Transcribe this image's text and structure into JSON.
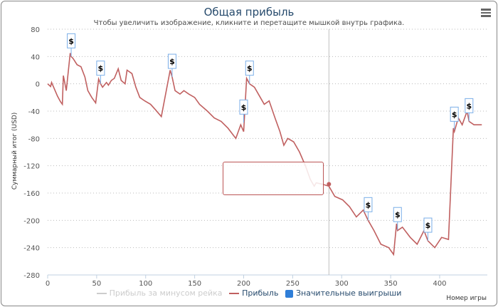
{
  "header": {
    "title": "Общая прибыль",
    "subtitle": "Чтобы увеличить изображение, кликните и перетащите мышкой внутрь графика.",
    "menu_icon": "hamburger-icon"
  },
  "chart_data": {
    "type": "line",
    "title": "Общая прибыль",
    "xlabel": "Номер игры",
    "ylabel": "Суммарный итог (USD)",
    "xlim": [
      0,
      445
    ],
    "ylim": [
      -280,
      80
    ],
    "xticks": [
      0,
      50,
      100,
      150,
      200,
      250,
      300,
      350,
      400
    ],
    "yticks": [
      80,
      40,
      0,
      -40,
      -80,
      -120,
      -160,
      -200,
      -240,
      -280
    ],
    "grid": "horizontal-dotted",
    "legend_placement": "bottom",
    "legend": [
      {
        "name": "Прибыль за минусом рейка",
        "color": "#cccccc",
        "hidden": true
      },
      {
        "name": "Прибыль",
        "color": "#c06060"
      },
      {
        "name": "Значительные выигрыши",
        "color": "#2f7ed8"
      }
    ],
    "series": [
      {
        "name": "Прибыль",
        "color": "#c06060",
        "x": [
          0,
          3,
          4,
          7,
          10,
          13,
          15,
          16,
          17,
          19,
          23,
          24,
          26,
          30,
          34,
          38,
          41,
          45,
          49,
          52,
          54,
          56,
          60,
          62,
          65,
          68,
          72,
          75,
          79,
          81,
          86,
          90,
          94,
          99,
          105,
          110,
          116,
          125,
          127,
          130,
          135,
          139,
          144,
          150,
          155,
          163,
          170,
          177,
          184,
          192,
          197,
          200,
          203,
          206,
          211,
          215,
          221,
          226,
          232,
          237,
          241,
          245,
          251,
          257,
          263,
          268,
          272,
          274,
          280,
          287,
          293,
          301,
          308,
          315,
          322,
          327,
          333,
          340,
          348,
          353,
          356,
          357,
          362,
          370,
          377,
          384,
          388,
          395,
          402,
          409,
          414,
          415,
          419,
          423,
          428,
          430,
          435,
          440,
          443
        ],
        "y": [
          0,
          -4,
          2,
          -8,
          -18,
          -26,
          -30,
          12,
          5,
          -10,
          45,
          40,
          37,
          28,
          25,
          10,
          -10,
          -20,
          -28,
          7,
          0,
          -5,
          2,
          -2,
          5,
          8,
          22,
          5,
          0,
          20,
          15,
          -5,
          -20,
          -25,
          -30,
          -38,
          -48,
          20,
          10,
          -10,
          -15,
          -10,
          -15,
          -20,
          -30,
          -40,
          -50,
          -55,
          -65,
          -80,
          -60,
          -70,
          8,
          0,
          -5,
          -15,
          -30,
          -25,
          -50,
          -70,
          -90,
          -80,
          -85,
          -100,
          -120,
          -140,
          -150,
          -145,
          -147,
          -150,
          -165,
          -170,
          -180,
          -195,
          -185,
          -200,
          -215,
          -235,
          -240,
          -250,
          -205,
          -215,
          -210,
          -225,
          -235,
          -215,
          -230,
          -240,
          -225,
          -228,
          -65,
          -70,
          -50,
          -60,
          -40,
          -55,
          -60,
          -60,
          -60
        ]
      }
    ],
    "flags": {
      "label": "$",
      "x": [
        24,
        54,
        127,
        200,
        206,
        327,
        357,
        388,
        415,
        430
      ]
    },
    "crosshair": {
      "x": 287,
      "y": -147
    }
  },
  "legend": {
    "rake": "Прибыль за минусом рейка",
    "profit": "Прибыль",
    "wins": "Значительные выигрыши"
  }
}
